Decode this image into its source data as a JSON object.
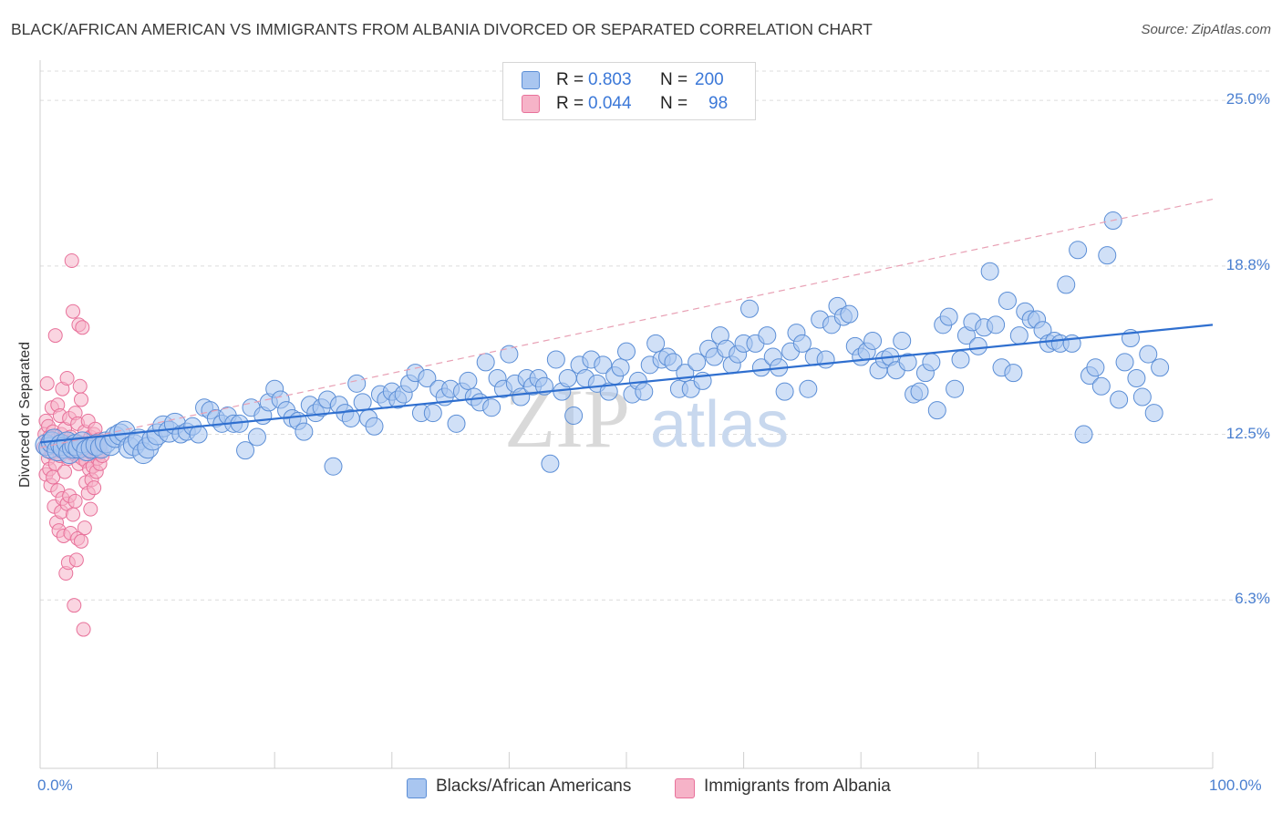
{
  "title": "BLACK/AFRICAN AMERICAN VS IMMIGRANTS FROM ALBANIA DIVORCED OR SEPARATED CORRELATION CHART",
  "source": "Source: ZipAtlas.com",
  "watermark": "ZIPatlas",
  "colors": {
    "blue_fill": "#a9c6f0",
    "blue_stroke": "#5b8ed6",
    "blue_line": "#2f6fcf",
    "pink_fill": "#f6b3c8",
    "pink_stroke": "#e8719a",
    "pink_line": "#e8a0b4",
    "axis_text": "#4a7fd0"
  },
  "legend": {
    "rows": [
      {
        "r_label": "R =",
        "r_value": "0.803",
        "n_label": "N =",
        "n_value": "200"
      },
      {
        "r_label": "R =",
        "r_value": "0.044",
        "n_label": "N =",
        "n_value": "98"
      }
    ]
  },
  "bottom_legend": [
    "Blacks/African Americans",
    "Immigrants from Albania"
  ],
  "chart_data": {
    "type": "scatter",
    "title": "BLACK/AFRICAN AMERICAN VS IMMIGRANTS FROM ALBANIA DIVORCED OR SEPARATED CORRELATION CHART",
    "xlabel": "",
    "ylabel": "Divorced or Separated",
    "xlim": [
      0,
      100
    ],
    "ylim": [
      0,
      26.3
    ],
    "x_tick_labels": [
      "0.0%",
      "100.0%"
    ],
    "y_ticks": [
      6.3,
      12.5,
      18.8,
      25.0
    ],
    "y_tick_labels": [
      "6.3%",
      "12.5%",
      "18.8%",
      "25.0%"
    ],
    "grid": "horizontal dashed",
    "legend_position": "top-center",
    "series": [
      {
        "name": "Blacks/African Americans",
        "R": 0.803,
        "N": 200,
        "trend": {
          "x": [
            0,
            100
          ],
          "y": [
            12.2,
            16.6
          ],
          "style": "solid"
        },
        "points": [
          [
            0.5,
            12.1
          ],
          [
            0.8,
            12.0
          ],
          [
            1.0,
            12.2
          ],
          [
            1.2,
            12.3
          ],
          [
            1.5,
            11.9
          ],
          [
            1.8,
            12.1
          ],
          [
            2.0,
            12.0
          ],
          [
            2.3,
            12.2
          ],
          [
            2.5,
            11.8
          ],
          [
            2.8,
            12.0
          ],
          [
            3.0,
            12.1
          ],
          [
            3.3,
            12.0
          ],
          [
            3.6,
            12.2
          ],
          [
            4.0,
            11.9
          ],
          [
            4.4,
            12.0
          ],
          [
            4.8,
            12.1
          ],
          [
            5.2,
            12.0
          ],
          [
            5.6,
            12.2
          ],
          [
            6.0,
            12.1
          ],
          [
            6.4,
            12.4
          ],
          [
            6.8,
            12.5
          ],
          [
            7.2,
            12.6
          ],
          [
            7.6,
            12.0
          ],
          [
            8.0,
            12.1
          ],
          [
            8.4,
            12.3
          ],
          [
            8.8,
            11.8
          ],
          [
            9.2,
            12.0
          ],
          [
            9.6,
            12.3
          ],
          [
            10.0,
            12.5
          ],
          [
            10.5,
            12.8
          ],
          [
            11.0,
            12.6
          ],
          [
            11.5,
            12.9
          ],
          [
            12.0,
            12.5
          ],
          [
            12.5,
            12.6
          ],
          [
            13.0,
            12.8
          ],
          [
            13.5,
            12.5
          ],
          [
            14.0,
            13.5
          ],
          [
            14.5,
            13.4
          ],
          [
            15.0,
            13.1
          ],
          [
            15.5,
            12.9
          ],
          [
            16.0,
            13.2
          ],
          [
            16.5,
            12.9
          ],
          [
            17.0,
            12.9
          ],
          [
            17.5,
            11.9
          ],
          [
            18.0,
            13.5
          ],
          [
            18.5,
            12.4
          ],
          [
            19.0,
            13.2
          ],
          [
            19.5,
            13.7
          ],
          [
            20.0,
            14.2
          ],
          [
            20.5,
            13.8
          ],
          [
            21.0,
            13.4
          ],
          [
            21.5,
            13.1
          ],
          [
            22.0,
            13.0
          ],
          [
            22.5,
            12.6
          ],
          [
            23.0,
            13.6
          ],
          [
            23.5,
            13.3
          ],
          [
            24.0,
            13.5
          ],
          [
            24.5,
            13.8
          ],
          [
            25.0,
            11.3
          ],
          [
            25.5,
            13.6
          ],
          [
            26.0,
            13.3
          ],
          [
            26.5,
            13.1
          ],
          [
            27.0,
            14.4
          ],
          [
            27.5,
            13.7
          ],
          [
            28.0,
            13.1
          ],
          [
            28.5,
            12.8
          ],
          [
            29.0,
            14.0
          ],
          [
            29.5,
            13.8
          ],
          [
            30.0,
            14.1
          ],
          [
            30.5,
            13.8
          ],
          [
            31.0,
            14.0
          ],
          [
            31.5,
            14.4
          ],
          [
            32.0,
            14.8
          ],
          [
            32.5,
            13.3
          ],
          [
            33.0,
            14.6
          ],
          [
            33.5,
            13.3
          ],
          [
            34.0,
            14.2
          ],
          [
            34.5,
            13.9
          ],
          [
            35.0,
            14.2
          ],
          [
            35.5,
            12.9
          ],
          [
            36.0,
            14.1
          ],
          [
            36.5,
            14.5
          ],
          [
            37.0,
            13.9
          ],
          [
            37.5,
            13.7
          ],
          [
            38.0,
            15.2
          ],
          [
            38.5,
            13.5
          ],
          [
            39.0,
            14.6
          ],
          [
            39.5,
            14.2
          ],
          [
            40.0,
            15.5
          ],
          [
            40.5,
            14.4
          ],
          [
            41.0,
            13.9
          ],
          [
            41.5,
            14.6
          ],
          [
            42.0,
            14.3
          ],
          [
            42.5,
            14.6
          ],
          [
            43.0,
            14.3
          ],
          [
            43.5,
            11.4
          ],
          [
            44.0,
            15.3
          ],
          [
            44.5,
            14.1
          ],
          [
            45.0,
            14.6
          ],
          [
            45.5,
            13.2
          ],
          [
            46.0,
            15.1
          ],
          [
            46.5,
            14.6
          ],
          [
            47.0,
            15.3
          ],
          [
            47.5,
            14.4
          ],
          [
            48.0,
            15.1
          ],
          [
            48.5,
            14.1
          ],
          [
            49.0,
            14.7
          ],
          [
            49.5,
            15.0
          ],
          [
            50.0,
            15.6
          ],
          [
            50.5,
            14.0
          ],
          [
            51.0,
            14.5
          ],
          [
            51.5,
            14.1
          ],
          [
            52.0,
            15.1
          ],
          [
            52.5,
            15.9
          ],
          [
            53.0,
            15.3
          ],
          [
            53.5,
            15.4
          ],
          [
            54.0,
            15.2
          ],
          [
            54.5,
            14.2
          ],
          [
            55.0,
            14.8
          ],
          [
            55.5,
            14.2
          ],
          [
            56.0,
            15.2
          ],
          [
            56.5,
            14.5
          ],
          [
            57.0,
            15.7
          ],
          [
            57.5,
            15.4
          ],
          [
            58.0,
            16.2
          ],
          [
            58.5,
            15.7
          ],
          [
            59.0,
            15.1
          ],
          [
            59.5,
            15.5
          ],
          [
            60.0,
            15.9
          ],
          [
            60.5,
            17.2
          ],
          [
            61.0,
            15.9
          ],
          [
            61.5,
            15.0
          ],
          [
            62.0,
            16.2
          ],
          [
            62.5,
            15.4
          ],
          [
            63.0,
            15.0
          ],
          [
            63.5,
            14.1
          ],
          [
            64.0,
            15.6
          ],
          [
            64.5,
            16.3
          ],
          [
            65.0,
            15.9
          ],
          [
            65.5,
            14.2
          ],
          [
            66.0,
            15.4
          ],
          [
            66.5,
            16.8
          ],
          [
            67.0,
            15.3
          ],
          [
            67.5,
            16.6
          ],
          [
            68.0,
            17.3
          ],
          [
            68.5,
            16.9
          ],
          [
            69.0,
            17.0
          ],
          [
            69.5,
            15.8
          ],
          [
            70.0,
            15.4
          ],
          [
            70.5,
            15.6
          ],
          [
            71.0,
            16.0
          ],
          [
            71.5,
            14.9
          ],
          [
            72.0,
            15.3
          ],
          [
            72.5,
            15.4
          ],
          [
            73.0,
            14.9
          ],
          [
            73.5,
            16.0
          ],
          [
            74.0,
            15.2
          ],
          [
            74.5,
            14.0
          ],
          [
            75.0,
            14.1
          ],
          [
            75.5,
            14.8
          ],
          [
            76.0,
            15.2
          ],
          [
            76.5,
            13.4
          ],
          [
            77.0,
            16.6
          ],
          [
            77.5,
            16.9
          ],
          [
            78.0,
            14.2
          ],
          [
            78.5,
            15.3
          ],
          [
            79.0,
            16.2
          ],
          [
            79.5,
            16.7
          ],
          [
            80.0,
            15.8
          ],
          [
            80.5,
            16.5
          ],
          [
            81.0,
            18.6
          ],
          [
            81.5,
            16.6
          ],
          [
            82.0,
            15.0
          ],
          [
            82.5,
            17.5
          ],
          [
            83.0,
            14.8
          ],
          [
            83.5,
            16.2
          ],
          [
            84.0,
            17.1
          ],
          [
            84.5,
            16.8
          ],
          [
            85.0,
            16.8
          ],
          [
            85.5,
            16.4
          ],
          [
            86.0,
            15.9
          ],
          [
            86.5,
            16.0
          ],
          [
            87.0,
            15.9
          ],
          [
            87.5,
            18.1
          ],
          [
            88.0,
            15.9
          ],
          [
            88.5,
            19.4
          ],
          [
            89.0,
            12.5
          ],
          [
            89.5,
            14.7
          ],
          [
            90.0,
            15.0
          ],
          [
            90.5,
            14.3
          ],
          [
            91.0,
            19.2
          ],
          [
            91.5,
            20.5
          ],
          [
            92.0,
            13.8
          ],
          [
            92.5,
            15.2
          ],
          [
            93.0,
            16.1
          ],
          [
            93.5,
            14.6
          ],
          [
            94.0,
            13.9
          ],
          [
            94.5,
            15.5
          ],
          [
            95.0,
            13.3
          ],
          [
            95.5,
            15.0
          ]
        ]
      },
      {
        "name": "Immigrants from Albania",
        "R": 0.044,
        "N": 98,
        "trend": {
          "x": [
            0,
            100
          ],
          "y": [
            12.0,
            21.3
          ],
          "style": "dashed"
        },
        "points": [
          [
            0.3,
            12.0
          ],
          [
            0.4,
            12.5
          ],
          [
            0.5,
            11.0
          ],
          [
            0.5,
            13.0
          ],
          [
            0.6,
            12.2
          ],
          [
            0.6,
            14.4
          ],
          [
            0.7,
            11.6
          ],
          [
            0.7,
            12.8
          ],
          [
            0.8,
            11.2
          ],
          [
            0.8,
            12.4
          ],
          [
            0.9,
            10.6
          ],
          [
            0.9,
            12.0
          ],
          [
            1.0,
            11.8
          ],
          [
            1.0,
            13.5
          ],
          [
            1.1,
            10.9
          ],
          [
            1.1,
            12.6
          ],
          [
            1.2,
            9.8
          ],
          [
            1.2,
            12.1
          ],
          [
            1.3,
            11.4
          ],
          [
            1.3,
            16.2
          ],
          [
            1.4,
            9.2
          ],
          [
            1.4,
            12.3
          ],
          [
            1.5,
            10.4
          ],
          [
            1.5,
            13.6
          ],
          [
            1.6,
            8.9
          ],
          [
            1.6,
            12.0
          ],
          [
            1.7,
            11.7
          ],
          [
            1.7,
            13.2
          ],
          [
            1.8,
            9.6
          ],
          [
            1.8,
            12.5
          ],
          [
            1.9,
            10.1
          ],
          [
            1.9,
            14.2
          ],
          [
            2.0,
            8.7
          ],
          [
            2.0,
            11.9
          ],
          [
            2.1,
            11.1
          ],
          [
            2.1,
            12.7
          ],
          [
            2.2,
            7.3
          ],
          [
            2.2,
            12.2
          ],
          [
            2.3,
            9.9
          ],
          [
            2.3,
            14.6
          ],
          [
            2.4,
            7.7
          ],
          [
            2.4,
            11.6
          ],
          [
            2.5,
            10.2
          ],
          [
            2.5,
            13.1
          ],
          [
            2.6,
            8.8
          ],
          [
            2.6,
            12.4
          ],
          [
            2.7,
            19.0
          ],
          [
            2.7,
            11.8
          ],
          [
            2.8,
            9.5
          ],
          [
            2.8,
            17.1
          ],
          [
            2.9,
            6.1
          ],
          [
            2.9,
            12.1
          ],
          [
            3.0,
            10.0
          ],
          [
            3.0,
            13.3
          ],
          [
            3.1,
            7.8
          ],
          [
            3.1,
            11.7
          ],
          [
            3.2,
            8.6
          ],
          [
            3.2,
            12.9
          ],
          [
            3.3,
            16.6
          ],
          [
            3.3,
            11.4
          ],
          [
            3.4,
            14.3
          ],
          [
            3.4,
            12.2
          ],
          [
            3.5,
            8.5
          ],
          [
            3.5,
            13.8
          ],
          [
            3.6,
            11.6
          ],
          [
            3.6,
            16.5
          ],
          [
            3.7,
            5.2
          ],
          [
            3.7,
            12.0
          ],
          [
            3.8,
            9.0
          ],
          [
            3.8,
            12.6
          ],
          [
            3.9,
            10.7
          ],
          [
            3.9,
            11.5
          ],
          [
            4.0,
            12.1
          ],
          [
            4.0,
            11.9
          ],
          [
            4.1,
            13.0
          ],
          [
            4.1,
            10.3
          ],
          [
            4.2,
            12.3
          ],
          [
            4.2,
            11.2
          ],
          [
            4.3,
            9.7
          ],
          [
            4.3,
            12.4
          ],
          [
            4.4,
            11.8
          ],
          [
            4.4,
            10.8
          ],
          [
            4.5,
            12.0
          ],
          [
            4.5,
            11.3
          ],
          [
            4.6,
            12.5
          ],
          [
            4.6,
            10.5
          ],
          [
            4.7,
            11.9
          ],
          [
            4.7,
            12.7
          ],
          [
            4.8,
            11.1
          ],
          [
            4.8,
            12.2
          ],
          [
            4.9,
            11.6
          ],
          [
            4.9,
            12.0
          ],
          [
            5.0,
            11.8
          ],
          [
            5.0,
            12.3
          ],
          [
            5.1,
            11.4
          ],
          [
            5.1,
            12.1
          ],
          [
            5.2,
            11.9
          ],
          [
            5.3,
            11.7
          ]
        ]
      }
    ]
  }
}
